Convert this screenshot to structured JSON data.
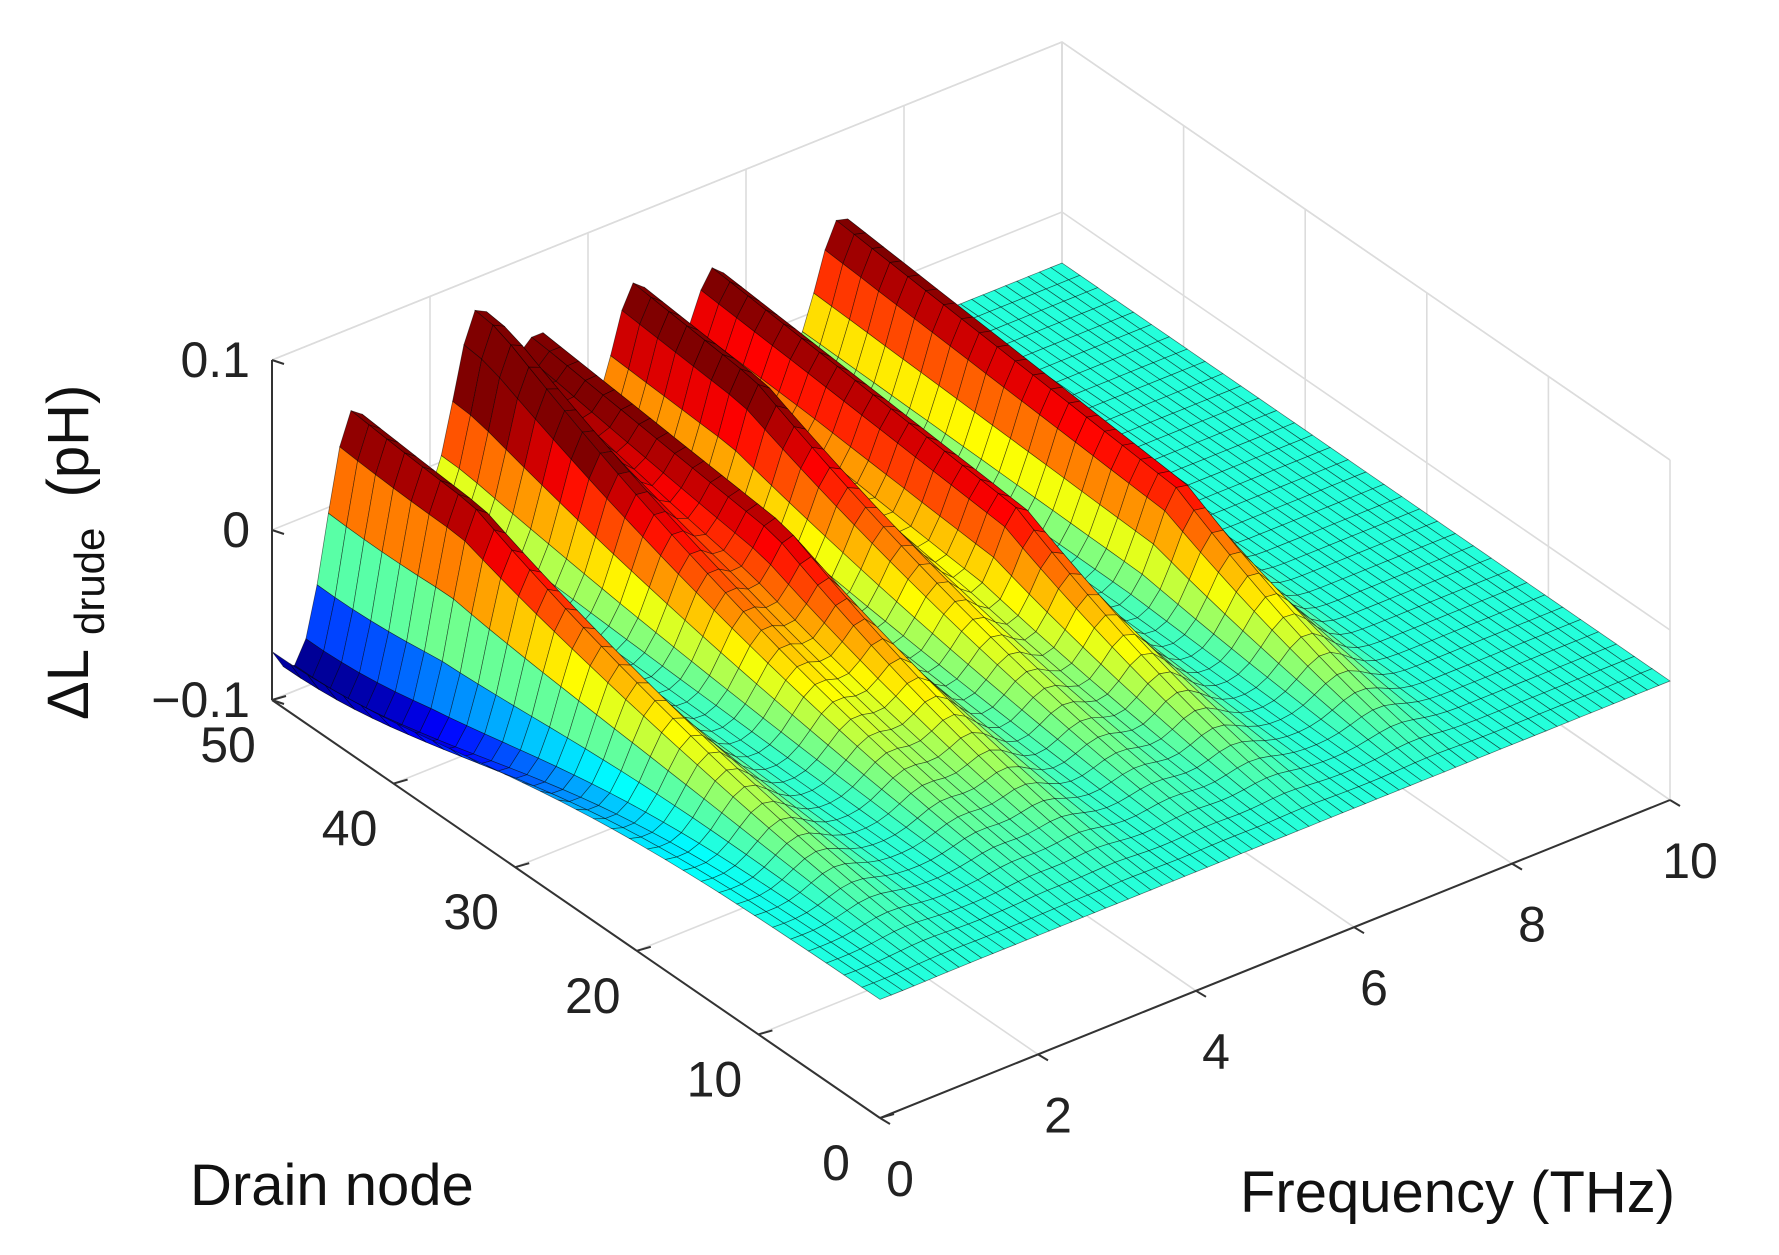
{
  "chart_data": {
    "type": "surface",
    "colormap": "jet",
    "xlabel": "Frequency (THz)",
    "ylabel": "Drain node",
    "zlabel": "ΔL",
    "zlabel_subscript": "drude",
    "zlabel_unit": "(pH)",
    "xlim": [
      0,
      10
    ],
    "ylim": [
      0,
      50
    ],
    "zlim": [
      -0.1,
      0.1
    ],
    "x_ticks": [
      0,
      2,
      4,
      6,
      8,
      10
    ],
    "y_ticks": [
      0,
      10,
      20,
      30,
      40,
      50
    ],
    "z_ticks": [
      -0.1,
      0,
      0.1
    ],
    "x_tick_labels": [
      "0",
      "2",
      "4",
      "6",
      "8",
      "10"
    ],
    "y_tick_labels": [
      "0",
      "10",
      "20",
      "30",
      "40",
      "50"
    ],
    "z_tick_labels": [
      "−0.1",
      "0",
      "0.1"
    ],
    "grid": true,
    "surface_peaks": [
      {
        "frequency": 1.0,
        "node_center": 40,
        "peak": 0.09
      },
      {
        "frequency": 2.6,
        "node_center": 48,
        "peak": 0.11
      },
      {
        "frequency": 3.4,
        "node_center": 30,
        "peak": 0.08
      },
      {
        "frequency": 4.6,
        "node_center": 40,
        "peak": 0.09
      },
      {
        "frequency": 5.6,
        "node_center": 25,
        "peak": 0.08
      },
      {
        "frequency": 7.2,
        "node_center": 22,
        "peak": 0.08
      }
    ]
  }
}
